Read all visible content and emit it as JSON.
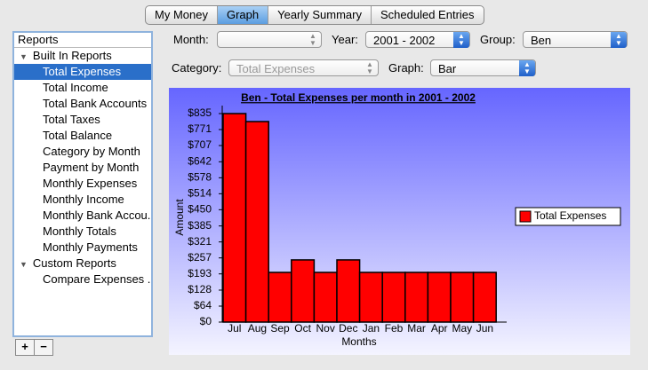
{
  "tabs": [
    "My Money",
    "Graph",
    "Yearly Summary",
    "Scheduled Entries"
  ],
  "selected_tab": 1,
  "sidebar": {
    "header": "Reports",
    "groups": [
      {
        "label": "Built In Reports",
        "items": [
          "Total Expenses",
          "Total Income",
          "Total Bank Accounts",
          "Total Taxes",
          "Total Balance",
          "Category by Month",
          "Payment by Month",
          "Monthly Expenses",
          "Monthly Income",
          "Monthly Bank Accou...",
          "Monthly Totals",
          "Monthly Payments"
        ]
      },
      {
        "label": "Custom Reports",
        "items": [
          "Compare Expenses ..."
        ]
      }
    ]
  },
  "buttons": [
    "+",
    "−"
  ],
  "controls": {
    "month_label": "Month:",
    "year_label": "Year:",
    "year_value": "2001 - 2002",
    "group_label": "Group:",
    "group_value": "Ben",
    "category_label": "Category:",
    "category_value": "Total Expenses",
    "graph_label": "Graph:",
    "graph_value": "Bar"
  },
  "chart_data": {
    "type": "bar",
    "title": "Ben - Total Expenses per month in 2001 - 2002",
    "xlabel": "Months",
    "ylabel": "Amount",
    "categories": [
      "Jul",
      "Aug",
      "Sep",
      "Oct",
      "Nov",
      "Dec",
      "Jan",
      "Feb",
      "Mar",
      "Apr",
      "May",
      "Jun"
    ],
    "series": [
      {
        "name": "Total Expenses",
        "color": "#ff0000",
        "values": [
          835,
          803,
          199,
          249,
          199,
          249,
          199,
          199,
          199,
          199,
          199,
          199
        ]
      }
    ],
    "ylim": [
      0,
      835
    ],
    "yticks": [
      {
        "value": 0,
        "label": "$0"
      },
      {
        "value": 64,
        "label": "$64"
      },
      {
        "value": 128,
        "label": "$128"
      },
      {
        "value": 193,
        "label": "$193"
      },
      {
        "value": 257,
        "label": "$257"
      },
      {
        "value": 321,
        "label": "$321"
      },
      {
        "value": 385,
        "label": "$385"
      },
      {
        "value": 450,
        "label": "$450"
      },
      {
        "value": 514,
        "label": "$514"
      },
      {
        "value": 578,
        "label": "$578"
      },
      {
        "value": 642,
        "label": "$642"
      },
      {
        "value": 707,
        "label": "$707"
      },
      {
        "value": 771,
        "label": "$771"
      },
      {
        "value": 835,
        "label": "$835"
      }
    ],
    "legend": "right"
  }
}
